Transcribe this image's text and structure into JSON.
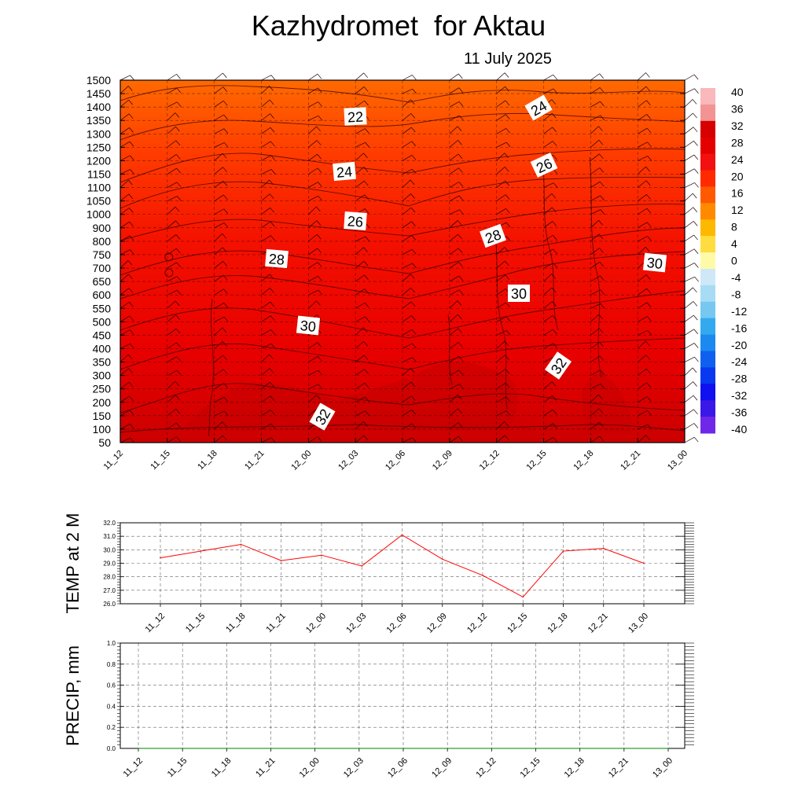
{
  "title": "Kazhydromet  for Aktau",
  "date": "11 July 2025",
  "chart_data": [
    {
      "type": "heatmap",
      "title": "Kazhydromet  for Aktau",
      "subtitle": "11 July 2025",
      "time_labels": [
        "11_12",
        "11_15",
        "11_18",
        "11_21",
        "12_00",
        "12_03",
        "12_06",
        "12_09",
        "12_12",
        "12_15",
        "12_18",
        "12_21",
        "13_00"
      ],
      "y_ticks": [
        50,
        100,
        150,
        200,
        250,
        300,
        350,
        400,
        450,
        500,
        550,
        600,
        650,
        700,
        750,
        800,
        900,
        1000,
        1050,
        1100,
        1150,
        1200,
        1250,
        1300,
        1350,
        1400,
        1450,
        1500
      ],
      "contour_labels": [
        "22",
        "24",
        "26",
        "28",
        "30",
        "32",
        "24",
        "26",
        "28",
        "30",
        "32",
        "30"
      ],
      "colorbar": {
        "ticks": [
          "40",
          "36",
          "32",
          "28",
          "24",
          "20",
          "16",
          "12",
          "8",
          "4",
          "0",
          "-4",
          "-8",
          "-12",
          "-16",
          "-20",
          "-24",
          "-28",
          "-32",
          "-36",
          "-40"
        ],
        "colors": [
          "#f8b8bc",
          "#f29494",
          "#d60000",
          "#e50000",
          "#f21010",
          "#ff2a00",
          "#ff5a00",
          "#ff8a00",
          "#ffb800",
          "#ffdd40",
          "#fffaa8",
          "#cfe8f8",
          "#a8dcf4",
          "#76c8f0",
          "#33aaf0",
          "#1a8af0",
          "#1060f0",
          "#0838f0",
          "#1010f0",
          "#3a18e8",
          "#7028e8"
        ]
      },
      "background": "#f00000"
    },
    {
      "type": "line",
      "ylabel": "TEMP at 2 M",
      "categories": [
        "11_12",
        "11_15",
        "11_18",
        "11_21",
        "12_00",
        "12_03",
        "12_06",
        "12_09",
        "12_12",
        "12_15",
        "12_18",
        "12_21",
        "13_00"
      ],
      "y_ticks": [
        "32.0",
        "31.0",
        "30.0",
        "29.0",
        "28.0",
        "27.0",
        "26.0"
      ],
      "ylim": [
        26.0,
        32.0
      ],
      "values": [
        29.4,
        29.9,
        30.4,
        29.2,
        29.6,
        28.8,
        31.1,
        29.3,
        28.1,
        26.5,
        29.9,
        30.1,
        29.0
      ],
      "color": "#ff0000"
    },
    {
      "type": "line",
      "ylabel": "PRECIP, mm",
      "categories": [
        "11_12",
        "11_15",
        "11_18",
        "11_21",
        "12_00",
        "12_03",
        "12_06",
        "12_09",
        "12_12",
        "12_15",
        "12_18",
        "12_21",
        "13_00"
      ],
      "y_ticks": [
        "1.0",
        "0.8",
        "0.6",
        "0.4",
        "0.2",
        "0.0"
      ],
      "ylim": [
        0.0,
        1.0
      ],
      "values": [
        0,
        0,
        0,
        0,
        0,
        0,
        0,
        0,
        0,
        0,
        0,
        0,
        0
      ],
      "color": "#008000"
    }
  ]
}
